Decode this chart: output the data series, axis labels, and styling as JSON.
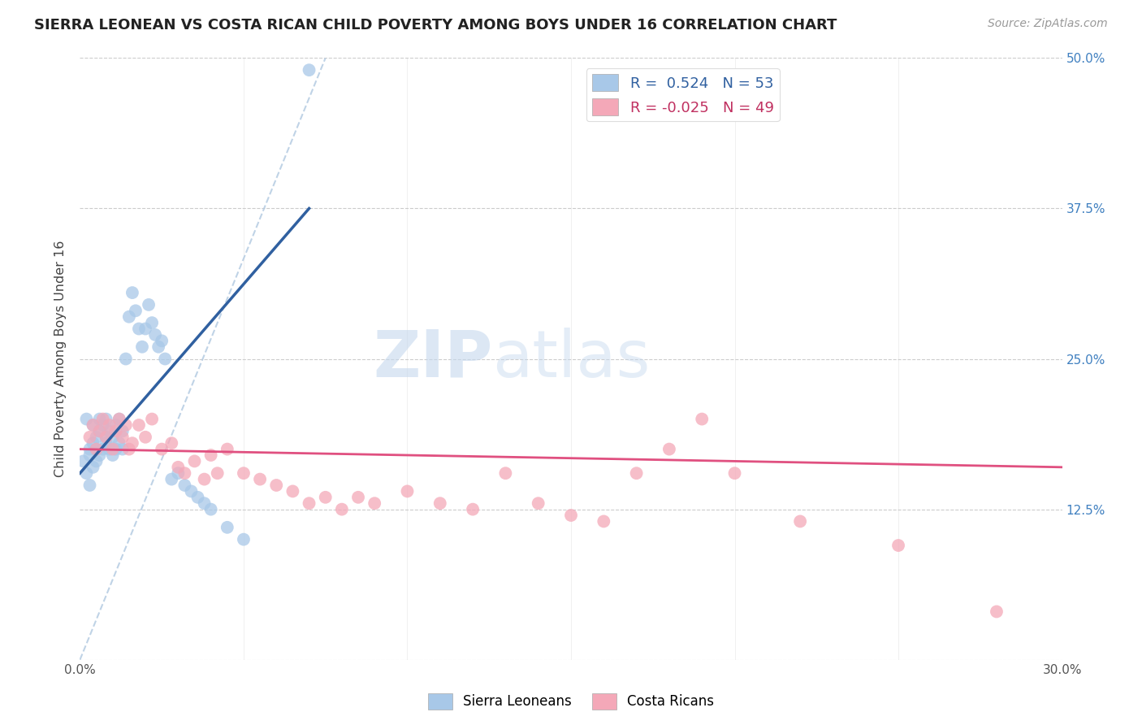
{
  "title": "SIERRA LEONEAN VS COSTA RICAN CHILD POVERTY AMONG BOYS UNDER 16 CORRELATION CHART",
  "source": "Source: ZipAtlas.com",
  "ylabel": "Child Poverty Among Boys Under 16",
  "x_ticks": [
    0.0,
    0.05,
    0.1,
    0.15,
    0.2,
    0.25,
    0.3
  ],
  "y_ticks": [
    0.0,
    0.125,
    0.25,
    0.375,
    0.5
  ],
  "y_tick_labels_right": [
    "",
    "12.5%",
    "25.0%",
    "37.5%",
    "50.0%"
  ],
  "xlim": [
    0.0,
    0.3
  ],
  "ylim": [
    0.0,
    0.5
  ],
  "sierra_R": 0.524,
  "sierra_N": 53,
  "costa_R": -0.025,
  "costa_N": 49,
  "sierra_color": "#a8c8e8",
  "costa_color": "#f4a8b8",
  "sierra_line_color": "#3060a0",
  "costa_line_color": "#e05080",
  "legend_label_sierra": "Sierra Leoneans",
  "legend_label_costa": "Costa Ricans",
  "watermark_zip": "ZIP",
  "watermark_atlas": "atlas",
  "sierra_points_x": [
    0.001,
    0.002,
    0.002,
    0.003,
    0.003,
    0.003,
    0.004,
    0.004,
    0.004,
    0.005,
    0.005,
    0.005,
    0.006,
    0.006,
    0.006,
    0.007,
    0.007,
    0.008,
    0.008,
    0.008,
    0.009,
    0.009,
    0.01,
    0.01,
    0.011,
    0.011,
    0.012,
    0.012,
    0.013,
    0.013,
    0.014,
    0.015,
    0.016,
    0.017,
    0.018,
    0.019,
    0.02,
    0.021,
    0.022,
    0.023,
    0.024,
    0.025,
    0.026,
    0.028,
    0.03,
    0.032,
    0.034,
    0.036,
    0.038,
    0.04,
    0.045,
    0.05,
    0.07
  ],
  "sierra_points_y": [
    0.165,
    0.155,
    0.2,
    0.145,
    0.17,
    0.175,
    0.16,
    0.18,
    0.195,
    0.165,
    0.185,
    0.175,
    0.17,
    0.19,
    0.2,
    0.175,
    0.195,
    0.18,
    0.185,
    0.2,
    0.175,
    0.19,
    0.17,
    0.185,
    0.175,
    0.195,
    0.18,
    0.2,
    0.175,
    0.19,
    0.25,
    0.285,
    0.305,
    0.29,
    0.275,
    0.26,
    0.275,
    0.295,
    0.28,
    0.27,
    0.26,
    0.265,
    0.25,
    0.15,
    0.155,
    0.145,
    0.14,
    0.135,
    0.13,
    0.125,
    0.11,
    0.1,
    0.49
  ],
  "costa_points_x": [
    0.003,
    0.004,
    0.005,
    0.006,
    0.007,
    0.008,
    0.009,
    0.01,
    0.011,
    0.012,
    0.013,
    0.014,
    0.015,
    0.016,
    0.018,
    0.02,
    0.022,
    0.025,
    0.028,
    0.03,
    0.032,
    0.035,
    0.038,
    0.04,
    0.042,
    0.045,
    0.05,
    0.055,
    0.06,
    0.065,
    0.07,
    0.075,
    0.08,
    0.085,
    0.09,
    0.1,
    0.11,
    0.12,
    0.13,
    0.14,
    0.15,
    0.16,
    0.17,
    0.18,
    0.19,
    0.2,
    0.22,
    0.25,
    0.28
  ],
  "costa_points_y": [
    0.185,
    0.195,
    0.175,
    0.19,
    0.2,
    0.185,
    0.195,
    0.175,
    0.19,
    0.2,
    0.185,
    0.195,
    0.175,
    0.18,
    0.195,
    0.185,
    0.2,
    0.175,
    0.18,
    0.16,
    0.155,
    0.165,
    0.15,
    0.17,
    0.155,
    0.175,
    0.155,
    0.15,
    0.145,
    0.14,
    0.13,
    0.135,
    0.125,
    0.135,
    0.13,
    0.14,
    0.13,
    0.125,
    0.155,
    0.13,
    0.12,
    0.115,
    0.155,
    0.175,
    0.2,
    0.155,
    0.115,
    0.095,
    0.04
  ],
  "diag_line_x": [
    0.0,
    0.075
  ],
  "diag_line_y": [
    0.0,
    0.5
  ],
  "sierra_trendline_x": [
    0.0,
    0.07
  ],
  "sierra_trendline_y": [
    0.155,
    0.375
  ],
  "costa_trendline_x": [
    0.0,
    0.3
  ],
  "costa_trendline_y": [
    0.175,
    0.16
  ]
}
